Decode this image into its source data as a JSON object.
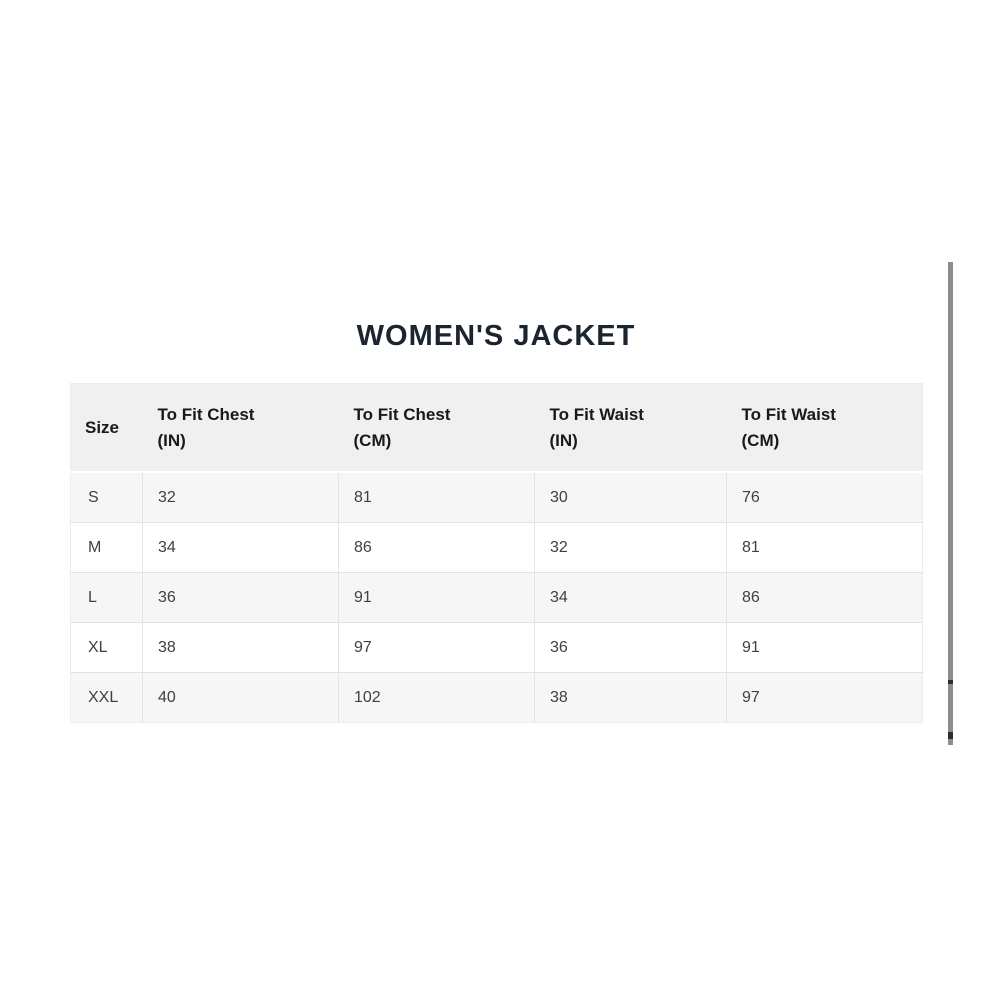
{
  "title": "WOMEN'S JACKET",
  "size_chart": {
    "columns": [
      {
        "label": "Size",
        "unit": ""
      },
      {
        "label": "To Fit Chest",
        "unit": "(IN)"
      },
      {
        "label": "To Fit Chest",
        "unit": "(CM)"
      },
      {
        "label": "To Fit Waist",
        "unit": "(IN)"
      },
      {
        "label": "To Fit Waist",
        "unit": "(CM)"
      }
    ],
    "rows": [
      {
        "size": "S",
        "chest_in": "32",
        "chest_cm": "81",
        "waist_in": "30",
        "waist_cm": "76"
      },
      {
        "size": "M",
        "chest_in": "34",
        "chest_cm": "86",
        "waist_in": "32",
        "waist_cm": "81"
      },
      {
        "size": "L",
        "chest_in": "36",
        "chest_cm": "91",
        "waist_in": "34",
        "waist_cm": "86"
      },
      {
        "size": "XL",
        "chest_in": "38",
        "chest_cm": "97",
        "waist_in": "36",
        "waist_cm": "91"
      },
      {
        "size": "XXL",
        "chest_in": "40",
        "chest_cm": "102",
        "waist_in": "38",
        "waist_cm": "97"
      }
    ]
  },
  "colors": {
    "title_text": "#1c2430",
    "header_background": "#f0f0f1",
    "stripe_background": "#f6f6f7",
    "row_border": "#e2e2e2",
    "scrollbar": "#8d8d8d",
    "scrollbar_notch": "#2d2d2d"
  }
}
